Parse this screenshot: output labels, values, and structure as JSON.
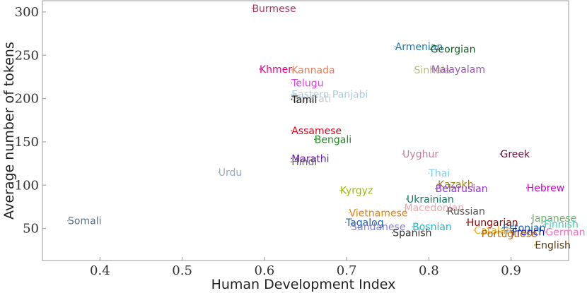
{
  "chart_data": {
    "type": "scatter",
    "xlabel": "Human Development Index",
    "ylabel": "Average number of tokens",
    "xlim": [
      0.33,
      0.97
    ],
    "ylim": [
      13,
      313
    ],
    "xticks": [
      0.4,
      0.5,
      0.6,
      0.7,
      0.8,
      0.9
    ],
    "xtick_labels": [
      "0.4",
      "0.5",
      "0.6",
      "0.7",
      "0.8",
      "0.9"
    ],
    "yticks": [
      50,
      100,
      150,
      200,
      250,
      300
    ],
    "ytick_labels": [
      "50",
      "100",
      "150",
      "200",
      "250",
      "300"
    ],
    "grid": false,
    "points": [
      {
        "name": "Burmese",
        "x": 0.585,
        "y": 304,
        "color": "#a23a5b"
      },
      {
        "name": "Armenian",
        "x": 0.759,
        "y": 260,
        "color": "#1f77b4"
      },
      {
        "name": "Georgian",
        "x": 0.802,
        "y": 257,
        "color": "#0b5d1e"
      },
      {
        "name": "Khmer",
        "x": 0.594,
        "y": 234,
        "color": "#e6008a"
      },
      {
        "name": "Kannada",
        "x": 0.633,
        "y": 233,
        "color": "#f07850"
      },
      {
        "name": "Sinhala",
        "x": 0.782,
        "y": 233,
        "color": "#b8b888"
      },
      {
        "name": "Malayalam",
        "x": 0.803,
        "y": 234,
        "color": "#9b59b6"
      },
      {
        "name": "Telugu",
        "x": 0.633,
        "y": 218,
        "color": "#e040e0"
      },
      {
        "name": "Eastern Panjabi",
        "x": 0.633,
        "y": 205,
        "color": "#a8ccd8"
      },
      {
        "name": "Gujarati",
        "x": 0.633,
        "y": 200,
        "color": "#c8c8c8"
      },
      {
        "name": "Tamil",
        "x": 0.633,
        "y": 199,
        "color": "#1a1a1a"
      },
      {
        "name": "Assamese",
        "x": 0.633,
        "y": 163,
        "color": "#e6001a"
      },
      {
        "name": "Bengali",
        "x": 0.661,
        "y": 153,
        "color": "#1a8a1a"
      },
      {
        "name": "Uyghur",
        "x": 0.768,
        "y": 136,
        "color": "#c37d9a"
      },
      {
        "name": "Greek",
        "x": 0.887,
        "y": 136,
        "color": "#6b0f3a"
      },
      {
        "name": "Marathi",
        "x": 0.633,
        "y": 131,
        "color": "#6a1ab0"
      },
      {
        "name": "Hindi",
        "x": 0.633,
        "y": 127,
        "color": "#666666"
      },
      {
        "name": "Urdu",
        "x": 0.544,
        "y": 115,
        "color": "#9aa8c0"
      },
      {
        "name": "Thai",
        "x": 0.8,
        "y": 114,
        "color": "#7fd0f0"
      },
      {
        "name": "Kazakh",
        "x": 0.811,
        "y": 101,
        "color": "#9a8020"
      },
      {
        "name": "Belarusian",
        "x": 0.808,
        "y": 96,
        "color": "#9b30e0"
      },
      {
        "name": "Hebrew",
        "x": 0.919,
        "y": 97,
        "color": "#d000d0"
      },
      {
        "name": "Kyrgyz",
        "x": 0.692,
        "y": 94,
        "color": "#a0b800"
      },
      {
        "name": "Ukrainian",
        "x": 0.773,
        "y": 84,
        "color": "#0a7a5a"
      },
      {
        "name": "Macedonian",
        "x": 0.77,
        "y": 74,
        "color": "#e8a8b0"
      },
      {
        "name": "Russian",
        "x": 0.822,
        "y": 70,
        "color": "#555555"
      },
      {
        "name": "Vietnamese",
        "x": 0.703,
        "y": 68,
        "color": "#e08010"
      },
      {
        "name": "Somali",
        "x": 0.361,
        "y": 59,
        "color": "#5a7090"
      },
      {
        "name": "Japanese",
        "x": 0.925,
        "y": 62,
        "color": "#70b070"
      },
      {
        "name": "Hungarian",
        "x": 0.846,
        "y": 57,
        "color": "#8b0000"
      },
      {
        "name": "Tagalog",
        "x": 0.699,
        "y": 57,
        "color": "#1f5fa0"
      },
      {
        "name": "Finnish",
        "x": 0.94,
        "y": 55,
        "color": "#40d0b0"
      },
      {
        "name": "Bosnian",
        "x": 0.78,
        "y": 52,
        "color": "#20b8c8"
      },
      {
        "name": "Estonian",
        "x": 0.89,
        "y": 51,
        "color": "#1060b0"
      },
      {
        "name": "Sundanese",
        "x": 0.705,
        "y": 52,
        "color": "#8080e0"
      },
      {
        "name": "Catalan",
        "x": 0.855,
        "y": 48,
        "color": "#f0b020"
      },
      {
        "name": "French",
        "x": 0.901,
        "y": 46,
        "color": "#1010b0"
      },
      {
        "name": "German",
        "x": 0.942,
        "y": 46,
        "color": "#f070c0"
      },
      {
        "name": "Spanish",
        "x": 0.756,
        "y": 45,
        "color": "#333333"
      },
      {
        "name": "Portuguese",
        "x": 0.864,
        "y": 44,
        "color": "#b06000"
      },
      {
        "name": "English",
        "x": 0.929,
        "y": 31,
        "color": "#5a3a10"
      }
    ]
  }
}
